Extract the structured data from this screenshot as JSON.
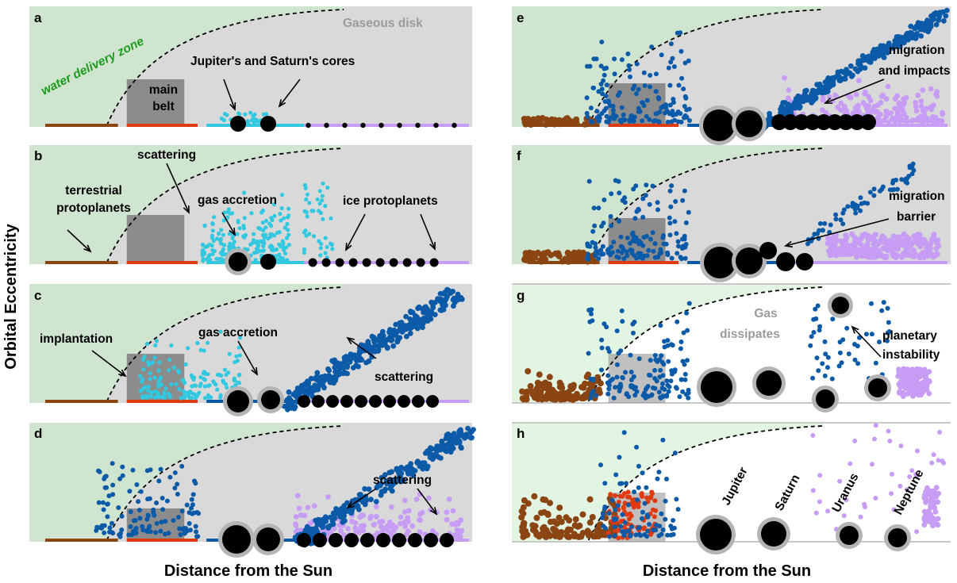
{
  "figure": {
    "y_axis_label": "Orbital Eccentricity",
    "x_axis_label_left": "Distance from the Sun",
    "x_axis_label_right": "Distance from the Sun"
  },
  "colors": {
    "disk_gray": "#d9d9d9",
    "water_zone_green": "#cfe5cf",
    "water_zone_green_light": "#e2f5e2",
    "main_belt": "#8c8c8c",
    "terrestrial_brown": "#8b4513",
    "main_belt_red": "#e03a10",
    "light_blue": "#32c8e0",
    "mid_blue": "#1ea0d2",
    "dark_blue": "#0a5aa8",
    "lavender": "#c79cf5",
    "planet_black": "#000000",
    "planet_halo": "#b4b4b4"
  },
  "panels": {
    "a": {
      "letter": "a",
      "gaseous_disk": "Gaseous disk",
      "water_delivery_zone": "water delivery zone",
      "main_belt_line1": "main",
      "main_belt_line2": "belt",
      "jupiter_saturn_cores": "Jupiter's and Saturn's cores"
    },
    "b": {
      "letter": "b",
      "scattering": "scattering",
      "terrestrial_line1": "terrestrial",
      "terrestrial_line2": "protoplanets",
      "gas_accretion": "gas accretion",
      "ice_protoplanets": "ice protoplanets"
    },
    "c": {
      "letter": "c",
      "implantation": "implantation",
      "gas_accretion": "gas accretion",
      "scattering": "scattering"
    },
    "d": {
      "letter": "d",
      "scattering": "scattering"
    },
    "e": {
      "letter": "e",
      "migration_line1": "migration",
      "migration_line2": "and impacts"
    },
    "f": {
      "letter": "f",
      "barrier_line1": "migration",
      "barrier_line2": "barrier"
    },
    "g": {
      "letter": "g",
      "gas_line1": "Gas",
      "gas_line2": "dissipates",
      "instability_line1": "planetary",
      "instability_line2": "instability"
    },
    "h": {
      "letter": "h",
      "jupiter": "Jupiter",
      "saturn": "Saturn",
      "uranus": "Uranus",
      "neptune": "Neptune"
    }
  }
}
